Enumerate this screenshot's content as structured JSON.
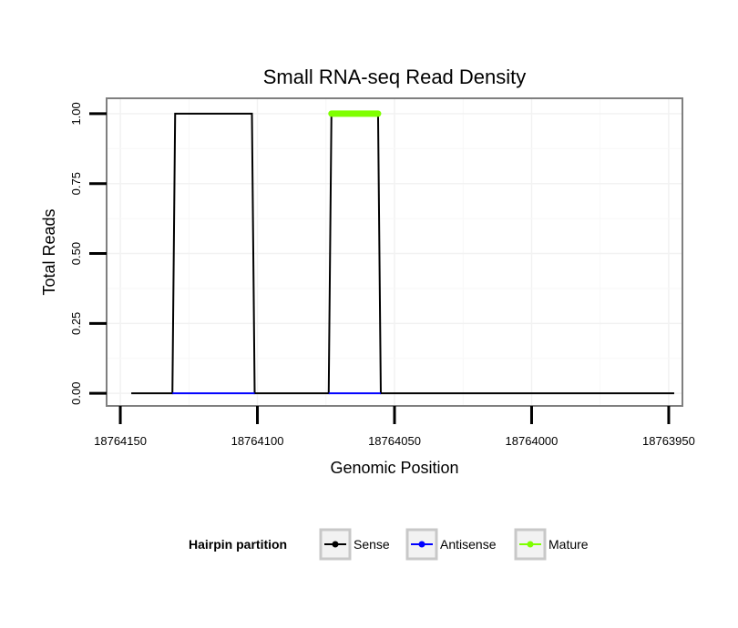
{
  "chart_data": {
    "type": "line",
    "title": "Small RNA-seq Read Density",
    "xlabel": "Genomic Position",
    "ylabel": "Total Reads",
    "xlim": [
      18764155,
      18763945
    ],
    "x_reversed": true,
    "ylim": [
      -0.045,
      1.055
    ],
    "x_ticks": [
      18764150,
      18764100,
      18764050,
      18764000,
      18763950
    ],
    "x_tick_labels": [
      "18764150",
      "18764100",
      "18764050",
      "18764000",
      "18763950"
    ],
    "y_ticks": [
      0,
      0.25,
      0.5,
      0.75,
      1
    ],
    "y_tick_labels": [
      "0.00",
      "0.25",
      "0.50",
      "0.75",
      "1.00"
    ],
    "grid": true,
    "legend": {
      "title": "Hairpin partition",
      "position": "bottom",
      "entries": [
        "Sense",
        "Antisense",
        "Mature"
      ]
    },
    "series": [
      {
        "name": "Sense",
        "color": "#000000",
        "x": [
          18764146,
          18764131,
          18764130,
          18764102,
          18764101,
          18764074,
          18764073,
          18764056,
          18764055,
          18763948
        ],
        "y": [
          0,
          0,
          1,
          1,
          0,
          0,
          1,
          1,
          0,
          0
        ]
      },
      {
        "name": "Antisense",
        "color": "#0000ff",
        "x": [
          18764131,
          18764101,
          18764074,
          18764055
        ],
        "y": [
          0,
          0,
          0,
          0
        ],
        "segments": [
          [
            0,
            1
          ],
          [
            2,
            3
          ]
        ]
      },
      {
        "name": "Mature",
        "color": "#7fff00",
        "x": [
          18764073,
          18764056
        ],
        "y": [
          1,
          1
        ]
      }
    ]
  }
}
